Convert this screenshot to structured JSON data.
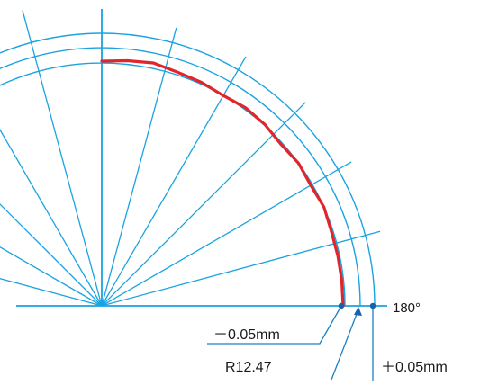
{
  "diagram": {
    "colors": {
      "grid": "#1aa3e0",
      "profile": "#e0252b",
      "label_text": "#1a1a1a",
      "leader": "#1a7fc4",
      "marker": "#1a5fa8"
    },
    "labels": {
      "angle_180": "180°",
      "minus_tolerance": "－0.05mm",
      "nominal_radius": "R12.47",
      "plus_tolerance": "＋0.05mm"
    }
  }
}
